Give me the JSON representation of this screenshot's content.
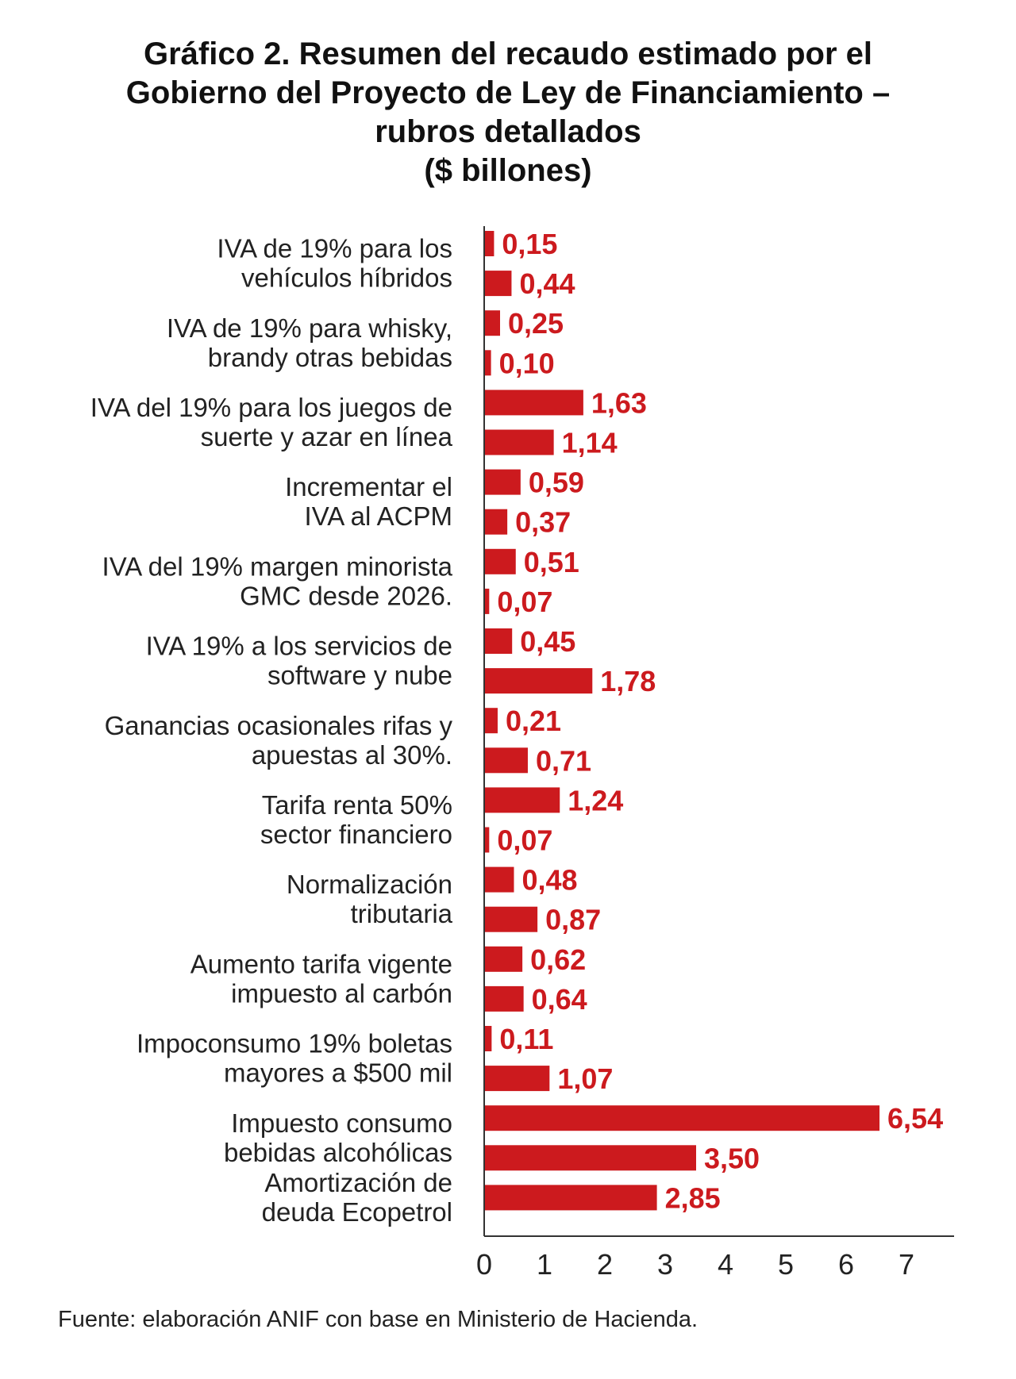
{
  "chart_data": {
    "type": "bar",
    "orientation": "horizontal",
    "title_lines": [
      "Gráfico 2. Resumen del recaudo estimado por el",
      "Gobierno del Proyecto de Ley de Financiamiento –",
      "rubros detallados",
      "($ billones)"
    ],
    "categories": [
      {
        "label_lines": [
          "IVA de 19% para los",
          "vehículos híbridos"
        ],
        "values": [
          0.15,
          0.44
        ],
        "value_labels": [
          "0,15",
          "0,44"
        ]
      },
      {
        "label_lines": [
          "IVA de 19% para whisky,",
          "brandy  otras bebidas"
        ],
        "values": [
          0.25,
          0.1
        ],
        "value_labels": [
          "0,25",
          "0,10"
        ]
      },
      {
        "label_lines": [
          "IVA del 19% para los juegos de",
          "suerte y azar en línea"
        ],
        "values": [
          1.63,
          1.14
        ],
        "value_labels": [
          "1,63",
          "1,14"
        ]
      },
      {
        "label_lines": [
          "Incrementar el",
          "IVA al ACPM"
        ],
        "values": [
          0.59,
          0.37
        ],
        "value_labels": [
          "0,59",
          "0,37"
        ]
      },
      {
        "label_lines": [
          "IVA del 19% margen minorista",
          "GMC desde 2026."
        ],
        "values": [
          0.51,
          0.07
        ],
        "value_labels": [
          "0,51",
          "0,07"
        ]
      },
      {
        "label_lines": [
          "IVA 19% a los servicios de",
          "software y nube"
        ],
        "values": [
          0.45,
          1.78
        ],
        "value_labels": [
          "0,45",
          "1,78"
        ]
      },
      {
        "label_lines": [
          "Ganancias ocasionales rifas y",
          "apuestas al 30%."
        ],
        "values": [
          0.21,
          0.71
        ],
        "value_labels": [
          "0,21",
          "0,71"
        ]
      },
      {
        "label_lines": [
          "Tarifa renta 50%",
          "sector financiero"
        ],
        "values": [
          1.24,
          0.07
        ],
        "value_labels": [
          "1,24",
          "0,07"
        ]
      },
      {
        "label_lines": [
          "Normalización",
          "tributaria"
        ],
        "values": [
          0.48,
          0.87
        ],
        "value_labels": [
          "0,48",
          "0,87"
        ]
      },
      {
        "label_lines": [
          "Aumento tarifa vigente",
          "impuesto al carbón"
        ],
        "values": [
          0.62,
          0.64
        ],
        "value_labels": [
          "0,62",
          "0,64"
        ]
      },
      {
        "label_lines": [
          "Impoconsumo 19% boletas",
          "mayores a $500 mil"
        ],
        "values": [
          0.11,
          1.07
        ],
        "value_labels": [
          "0,11",
          "1,07"
        ]
      },
      {
        "label_lines": [
          "Impuesto consumo",
          "bebidas alcohólicas"
        ],
        "values": [
          6.54,
          3.5
        ],
        "value_labels": [
          "6,54",
          "3,50"
        ]
      },
      {
        "label_lines": [
          "Amortización de",
          "deuda Ecopetrol"
        ],
        "values": [
          2.85
        ],
        "value_labels": [
          "2,85"
        ]
      }
    ],
    "x_ticks": [
      "0",
      "1",
      "2",
      "3",
      "4",
      "5",
      "6",
      "7"
    ],
    "xlim": [
      0,
      7.8
    ],
    "xlabel": "",
    "ylabel": "",
    "grid": false,
    "legend": "none",
    "bar_color": "#cc1a1e",
    "value_label_color": "#cc1a1e"
  },
  "source_note": "Fuente: elaboración ANIF con base en Ministerio de Hacienda."
}
